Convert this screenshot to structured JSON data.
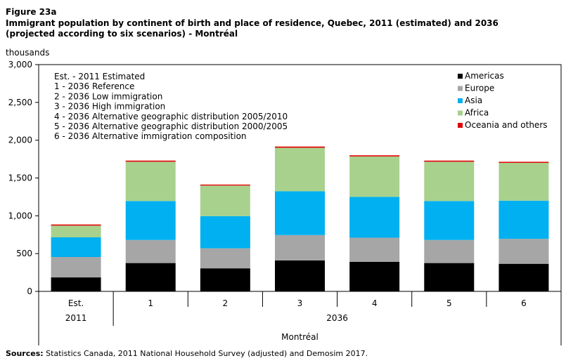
{
  "figure_label": "Figure 23a",
  "title": "Immigrant population by continent of birth and place of residence, Quebec, 2011 (estimated) and 2036 (projected according to six scenarios) - Montréal",
  "y_unit": "thousands",
  "notes": [
    "Est. - 2011 Estimated",
    "1 - 2036 Reference",
    "2 - 2036 Low immigration",
    "3 - 2036 High immigration",
    "4 - 2036 Alternative geographic distribution 2005/2010",
    "5 - 2036 Alternative geographic distribution 2000/2005",
    "6 - 2036 Alternative immigration composition"
  ],
  "sources_label": "Sources:",
  "sources_text": " Statistics Canada, 2011 National Household Survey (adjusted) and Demosim 2017.",
  "colors": {
    "Americas": "#000000",
    "Europe": "#a6a6a6",
    "Asia": "#00b0f0",
    "Africa": "#a9d18e",
    "Oceania and others": "#e00000"
  },
  "chart_data": {
    "type": "bar",
    "stacked": true,
    "categories": [
      "Est.",
      "1",
      "2",
      "3",
      "4",
      "5",
      "6"
    ],
    "year_groups": [
      {
        "label": "2011",
        "categories": [
          "Est."
        ]
      },
      {
        "label": "2036",
        "categories": [
          "1",
          "2",
          "3",
          "4",
          "5",
          "6"
        ]
      }
    ],
    "region_label": "Montréal",
    "series": [
      {
        "name": "Americas",
        "values": [
          185,
          375,
          305,
          410,
          390,
          375,
          365
        ]
      },
      {
        "name": "Europe",
        "values": [
          270,
          305,
          265,
          335,
          320,
          305,
          330
        ]
      },
      {
        "name": "Asia",
        "values": [
          260,
          515,
          425,
          580,
          540,
          515,
          505
        ]
      },
      {
        "name": "Africa",
        "values": [
          155,
          520,
          405,
          575,
          535,
          520,
          500
        ]
      },
      {
        "name": "Oceania and others",
        "values": [
          15,
          15,
          13,
          16,
          15,
          15,
          14
        ]
      }
    ],
    "ylim": [
      0,
      3000
    ],
    "yticks": [
      0,
      500,
      1000,
      1500,
      2000,
      2500,
      3000
    ],
    "ytick_labels": [
      "0",
      "500",
      "1,000",
      "1,500",
      "2,000",
      "2,500",
      "3,000"
    ],
    "grid": false,
    "legend_position": "top-right"
  }
}
